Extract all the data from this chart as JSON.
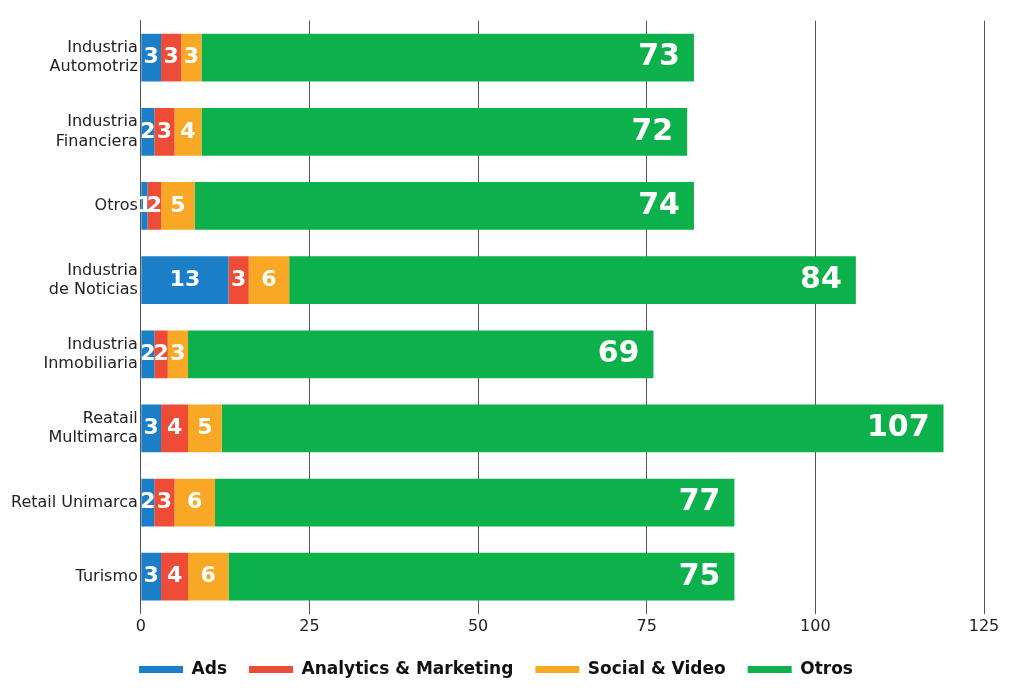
{
  "chart_data": {
    "type": "bar",
    "orientation": "horizontal",
    "stacked": true,
    "categories": [
      "Industria\nAutomotriz",
      "Industria\nFinanciera",
      "Otros",
      "Industria\nde Noticias",
      "Industria\nInmobiliaria",
      "Reatail\nMultimarca",
      "Retail Unimarca",
      "Turismo"
    ],
    "series": [
      {
        "name": "Ads",
        "color": "#1a7fc8",
        "values": [
          3,
          2,
          1,
          13,
          2,
          3,
          2,
          3
        ]
      },
      {
        "name": "Analytics & Marketing",
        "color": "#ef4c37",
        "values": [
          3,
          3,
          2,
          3,
          2,
          4,
          3,
          4
        ]
      },
      {
        "name": "Social & Video",
        "color": "#f9a825",
        "values": [
          3,
          4,
          5,
          6,
          3,
          5,
          6,
          6
        ]
      },
      {
        "name": "Otros",
        "color": "#0db14b",
        "values": [
          73,
          72,
          74,
          84,
          69,
          107,
          77,
          75
        ]
      }
    ],
    "xlim": [
      0,
      125
    ],
    "xticks": [
      0,
      25,
      50,
      75,
      100,
      125
    ],
    "grid": "x",
    "legend": "bottom",
    "data_labels": true
  }
}
